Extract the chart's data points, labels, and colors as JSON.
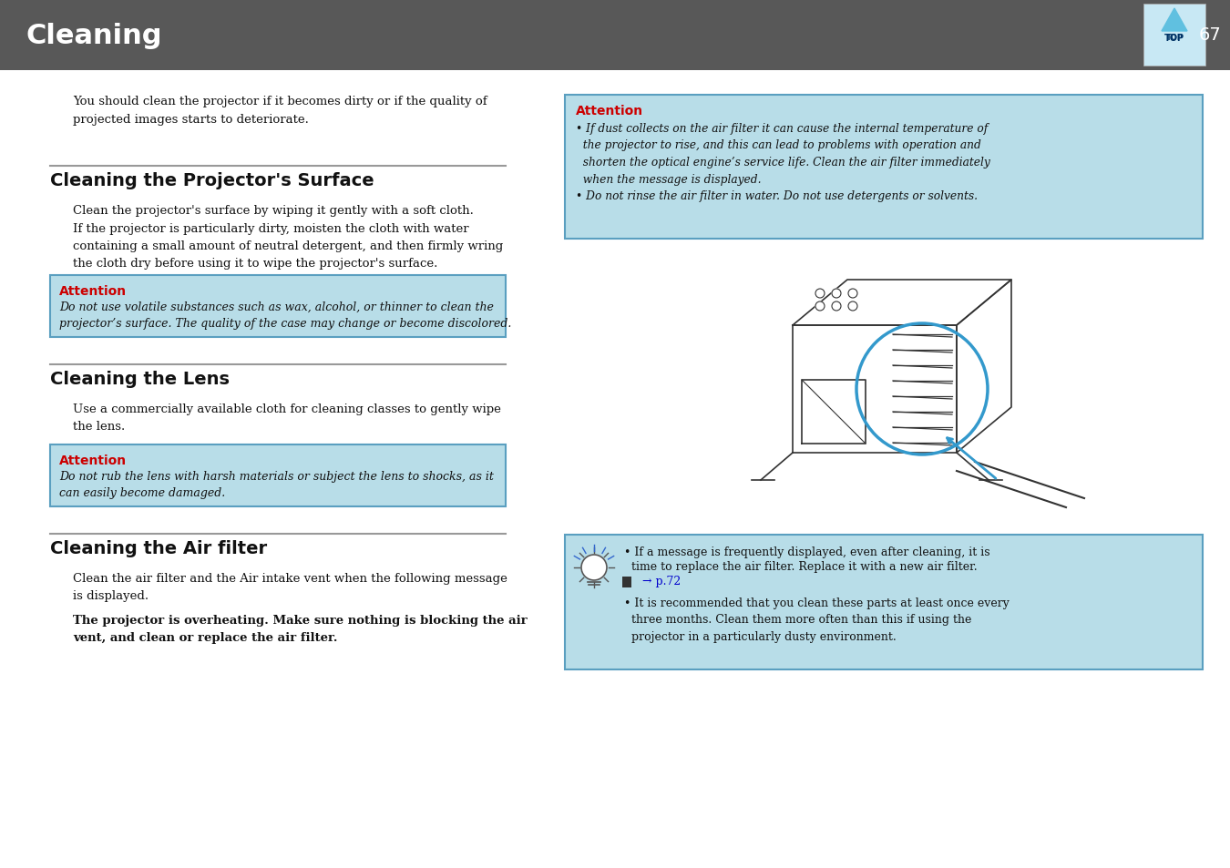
{
  "page_bg": "#ffffff",
  "header_bg": "#585858",
  "header_text": "Cleaning",
  "header_text_color": "#ffffff",
  "header_page_num": "67",
  "header_page_num_color": "#ffffff",
  "attention_box_bg": "#b8dde8",
  "attention_box_border": "#5a9fc0",
  "attention_label_color": "#cc0000",
  "section_line_color": "#999999",
  "body_text_color": "#111111",
  "link_color": "#0000cc",
  "intro_text": "You should clean the projector if it becomes dirty or if the quality of\nprojected images starts to deteriorate.",
  "section1_title": "Cleaning the Projector's Surface",
  "section1_body": "Clean the projector's surface by wiping it gently with a soft cloth.\nIf the projector is particularly dirty, moisten the cloth with water\ncontaining a small amount of neutral detergent, and then firmly wring\nthe cloth dry before using it to wipe the projector's surface.",
  "section1_attention_label": "Attention",
  "section1_attention_body": "Do not use volatile substances such as wax, alcohol, or thinner to clean the\nprojector’s surface. The quality of the case may change or become discolored.",
  "section2_title": "Cleaning the Lens",
  "section2_body": "Use a commercially available cloth for cleaning classes to gently wipe\nthe lens.",
  "section2_attention_label": "Attention",
  "section2_attention_body": "Do not rub the lens with harsh materials or subject the lens to shocks, as it\ncan easily become damaged.",
  "section3_title": "Cleaning the Air filter",
  "section3_body1": "Clean the air filter and the Air intake vent when the following message\nis displayed.",
  "section3_body2": "The projector is overheating. Make sure nothing is blocking the air\nvent, and clean or replace the air filter.",
  "right_attention_label": "Attention",
  "right_attention_body": "• If dust collects on the air filter it can cause the internal temperature of\n  the projector to rise, and this can lead to problems with operation and\n  shorten the optical engine’s service life. Clean the air filter immediately\n  when the message is displayed.\n• Do not rinse the air filter in water. Do not use detergents or solvents.",
  "right_tip_line1": "• If a message is frequently displayed, even after cleaning, it is",
  "right_tip_line2": "  time to replace the air filter. Replace it with a new air filter.",
  "right_tip_link": "  → p.72",
  "right_tip_line3": "• It is recommended that you clean these parts at least once every",
  "right_tip_line4": "  three months. Clean them more often than this if using the",
  "right_tip_line5": "  projector in a particularly dusty environment."
}
